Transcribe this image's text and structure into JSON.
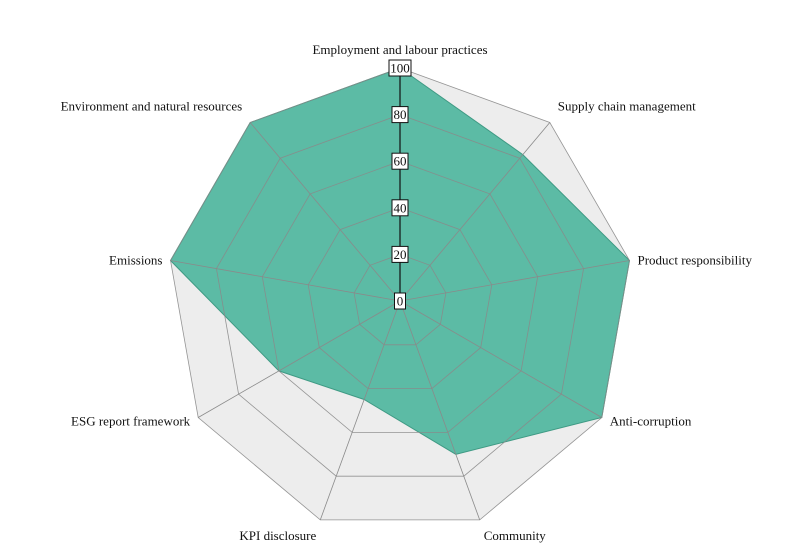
{
  "chart_data": {
    "type": "radar",
    "title": "",
    "axes": [
      "Employment and labour practices",
      "Supply chain management",
      "Product responsibility",
      "Anti-corruption",
      "Community",
      "KPI disclosure",
      "ESG report framework",
      "Emissions",
      "Environment and natural resources"
    ],
    "series": [
      {
        "values": [
          100,
          82,
          100,
          100,
          70,
          45,
          60,
          100,
          100
        ],
        "color": "#5cbba5"
      }
    ],
    "max_series": {
      "values": [
        100,
        100,
        100,
        100,
        100,
        100,
        100,
        100,
        100
      ],
      "color": "#ededed"
    },
    "range": [
      0,
      100
    ],
    "ticks": [
      "0",
      "20",
      "40",
      "60",
      "80",
      "100"
    ],
    "grid": true,
    "legend": "none"
  },
  "colors": {
    "fill": "#5cbba5",
    "fill_stroke": "#3f9a84",
    "grid_inner": "#2f4f47",
    "grid_outer": "#8a8a8a",
    "background_area": "#ededed"
  }
}
